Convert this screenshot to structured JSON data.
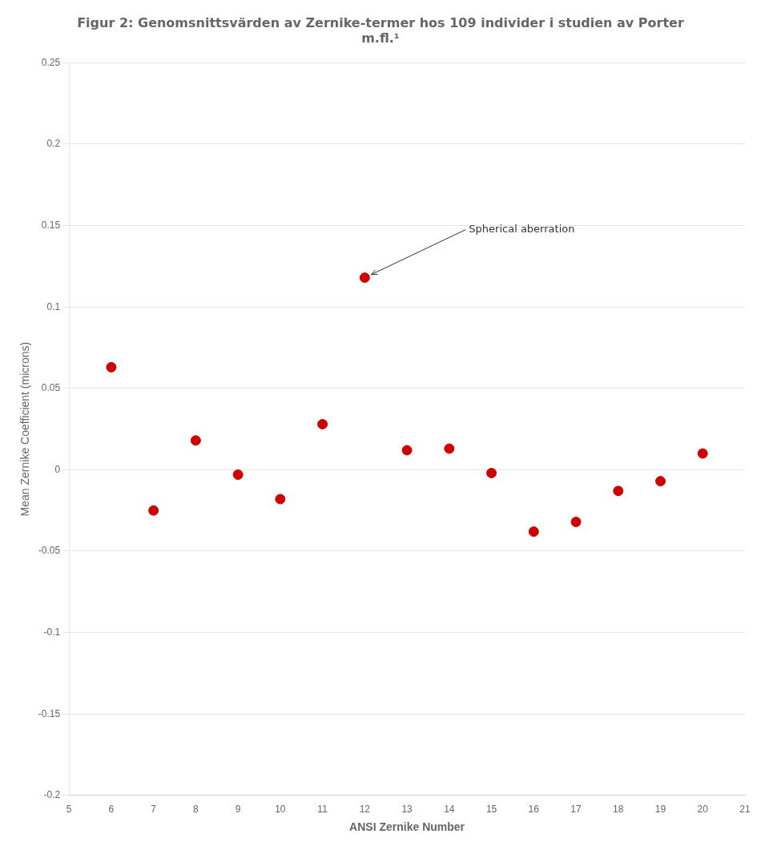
{
  "chart_data": {
    "type": "scatter",
    "title": [
      "Figur 2: Genomsnittsvärden av Zernike-termer hos 109 individer i studien av Porter",
      "m.fl.¹"
    ],
    "x_label": "ANSI Zernike Number",
    "y_label": "Mean Zernike Coefficient (microns)",
    "x": [
      6,
      7,
      8,
      9,
      10,
      11,
      12,
      13,
      14,
      15,
      16,
      17,
      18,
      19,
      20
    ],
    "values": [
      0.063,
      -0.025,
      0.018,
      -0.003,
      -0.018,
      0.028,
      0.118,
      0.012,
      0.013,
      -0.002,
      -0.038,
      -0.032,
      -0.013,
      -0.007,
      0.01
    ],
    "color": "#CC0000",
    "xlim": [
      5,
      21
    ],
    "ylim": [
      -0.2,
      0.25
    ],
    "xticks": [
      5,
      6,
      7,
      8,
      9,
      10,
      11,
      12,
      13,
      14,
      15,
      16,
      17,
      18,
      19,
      20,
      21
    ],
    "yticks": [
      -0.2,
      -0.15,
      -0.1,
      -0.05,
      0,
      0.05,
      0.1,
      0.15,
      0.2,
      0.25
    ],
    "grid": "y",
    "annotations": [
      {
        "text": "Spherical aberration",
        "x": 12,
        "y": 0.118
      }
    ]
  }
}
